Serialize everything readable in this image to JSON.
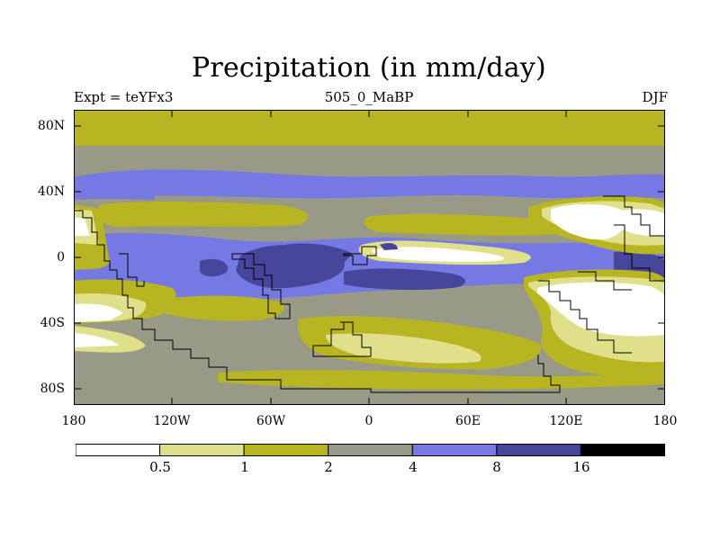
{
  "title": "Precipitation (in mm/day)",
  "subtitle_left": "Expt = teYFx3",
  "subtitle_center": "505_0_MaBP",
  "subtitle_right": "DJF",
  "y_axis_labels": [
    "80N",
    "40N",
    "0",
    "40S",
    "80S"
  ],
  "x_axis_labels": [
    "180",
    "120W",
    "60W",
    "0",
    "60E",
    "120E",
    "180"
  ],
  "colorbar": {
    "levels": [
      "0.5",
      "1",
      "2",
      "4",
      "8",
      "16"
    ],
    "colors": [
      "#ffffff",
      "#e1e08a",
      "#b7b521",
      "#999988",
      "#7678e4",
      "#46469a",
      "#000000"
    ]
  },
  "chart_data": {
    "type": "heatmap",
    "title": "Precipitation (in mm/day)",
    "variable": "Precipitation",
    "units": "mm/day",
    "season": "DJF",
    "experiment": "teYFx3",
    "period": "505_0_MaBP",
    "x_range": [
      -180,
      180
    ],
    "y_range": [
      -90,
      90
    ],
    "x_ticks": [
      -180,
      -120,
      -60,
      0,
      60,
      120,
      180
    ],
    "y_ticks": [
      80,
      40,
      0,
      -40,
      -80
    ],
    "contour_levels": [
      0.5,
      1,
      2,
      4,
      8,
      16
    ]
  }
}
